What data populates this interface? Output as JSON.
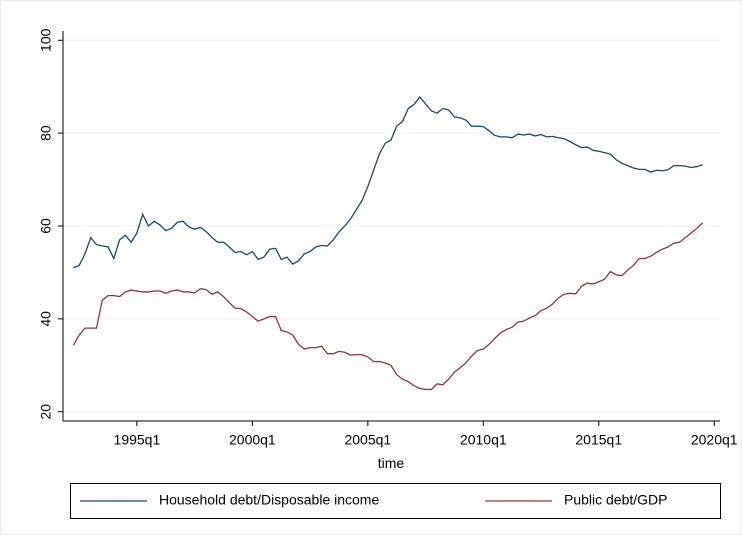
{
  "chart_data": {
    "type": "line",
    "x_label": "time",
    "x": [
      129,
      130,
      131,
      132,
      133,
      134,
      135,
      136,
      137,
      138,
      139,
      140,
      141,
      142,
      143,
      144,
      145,
      146,
      147,
      148,
      149,
      150,
      151,
      152,
      153,
      154,
      155,
      156,
      157,
      158,
      159,
      160,
      161,
      162,
      163,
      164,
      165,
      166,
      167,
      168,
      169,
      170,
      171,
      172,
      173,
      174,
      175,
      176,
      177,
      178,
      179,
      180,
      181,
      182,
      183,
      184,
      185,
      186,
      187,
      188,
      189,
      190,
      191,
      192,
      193,
      194,
      195,
      196,
      197,
      198,
      199,
      200,
      201,
      202,
      203,
      204,
      205,
      206,
      207,
      208,
      209,
      210,
      211,
      212,
      213,
      214,
      215,
      216,
      217,
      218,
      219,
      220,
      221,
      222,
      223,
      224,
      225,
      226,
      227,
      228,
      229,
      230,
      231,
      232,
      233,
      234,
      235,
      236,
      237,
      238
    ],
    "series": [
      {
        "name": "Household debt/Disposable income",
        "color": "#1a476f",
        "values": [
          51,
          51.5,
          54,
          57.5,
          56,
          55.7,
          55.5,
          53,
          57,
          58,
          56.5,
          58.5,
          62.5,
          60,
          61,
          60.2,
          59,
          59.5,
          60.8,
          61,
          59.8,
          59.3,
          59.7,
          58.8,
          57.5,
          56.5,
          56.5,
          55.5,
          54.3,
          54.5,
          53.8,
          54.5,
          52.8,
          53.3,
          55,
          55.2,
          52.8,
          53.3,
          51.8,
          52.5,
          54,
          54.5,
          55.5,
          55.8,
          55.7,
          57,
          58.7,
          60,
          61.5,
          63.5,
          65.5,
          68.5,
          72,
          75.5,
          77.8,
          78.5,
          81.5,
          82.5,
          85.3,
          86.2,
          87.8,
          86.3,
          84.8,
          84.3,
          85.3,
          85,
          83.5,
          83.3,
          82.8,
          81.5,
          81.5,
          81.4,
          80.5,
          79.5,
          79.2,
          79.2,
          79,
          79.8,
          79.6,
          79.8,
          79.4,
          79.7,
          79.2,
          79.3,
          79,
          78.8,
          78.2,
          77.5,
          76.9,
          77,
          76.3,
          76.1,
          75.8,
          75.5,
          74.3,
          73.5,
          73,
          72.5,
          72.2,
          72.2,
          71.6,
          72,
          71.9,
          72.1,
          73,
          73,
          72.9,
          72.6,
          72.8,
          73.2
        ]
      },
      {
        "name": "Public debt/GDP",
        "color": "#90353b",
        "values": [
          34.3,
          36.5,
          38,
          38,
          38,
          44,
          45,
          45,
          44.8,
          45.8,
          46.2,
          46,
          45.8,
          45.8,
          46,
          46,
          45.5,
          46,
          46.2,
          45.8,
          45.8,
          45.6,
          46.5,
          46.3,
          45.3,
          45.8,
          44.8,
          43.5,
          42.3,
          42.2,
          41.5,
          40.5,
          39.5,
          40,
          40.5,
          40.5,
          37.5,
          37.2,
          36.5,
          34.5,
          33.5,
          33.8,
          33.8,
          34.1,
          32.5,
          32.5,
          33,
          32.8,
          32.2,
          32.3,
          32.3,
          31.8,
          30.8,
          30.8,
          30.5,
          30,
          28,
          27,
          26.5,
          25.6,
          25,
          24.8,
          24.8,
          26,
          25.8,
          27,
          28.5,
          29.5,
          30.5,
          32,
          33.2,
          33.5,
          34.5,
          35.8,
          37,
          37.7,
          38.2,
          39.3,
          39.5,
          40.2,
          40.7,
          41.8,
          42.3,
          43.2,
          44.5,
          45.3,
          45.5,
          45.4,
          47,
          47.7,
          47.5,
          48,
          48.5,
          50.2,
          49.5,
          49.3,
          50.5,
          51.5,
          53,
          53,
          53.5,
          54.3,
          55,
          55.5,
          56.3,
          56.5,
          57.5,
          58.5,
          59.5,
          60.7
        ]
      }
    ],
    "xlim": [
      127.2,
      241
    ],
    "xticks": [
      {
        "value": 140,
        "label": "1995q1"
      },
      {
        "value": 160,
        "label": "2000q1"
      },
      {
        "value": 180,
        "label": "2005q1"
      },
      {
        "value": 200,
        "label": "2010q1"
      },
      {
        "value": 220,
        "label": "2015q1"
      },
      {
        "value": 240,
        "label": "2020q1"
      }
    ],
    "ylim": [
      18,
      102
    ],
    "yticks": [
      20,
      40,
      60,
      80,
      100
    ],
    "grid": true
  }
}
